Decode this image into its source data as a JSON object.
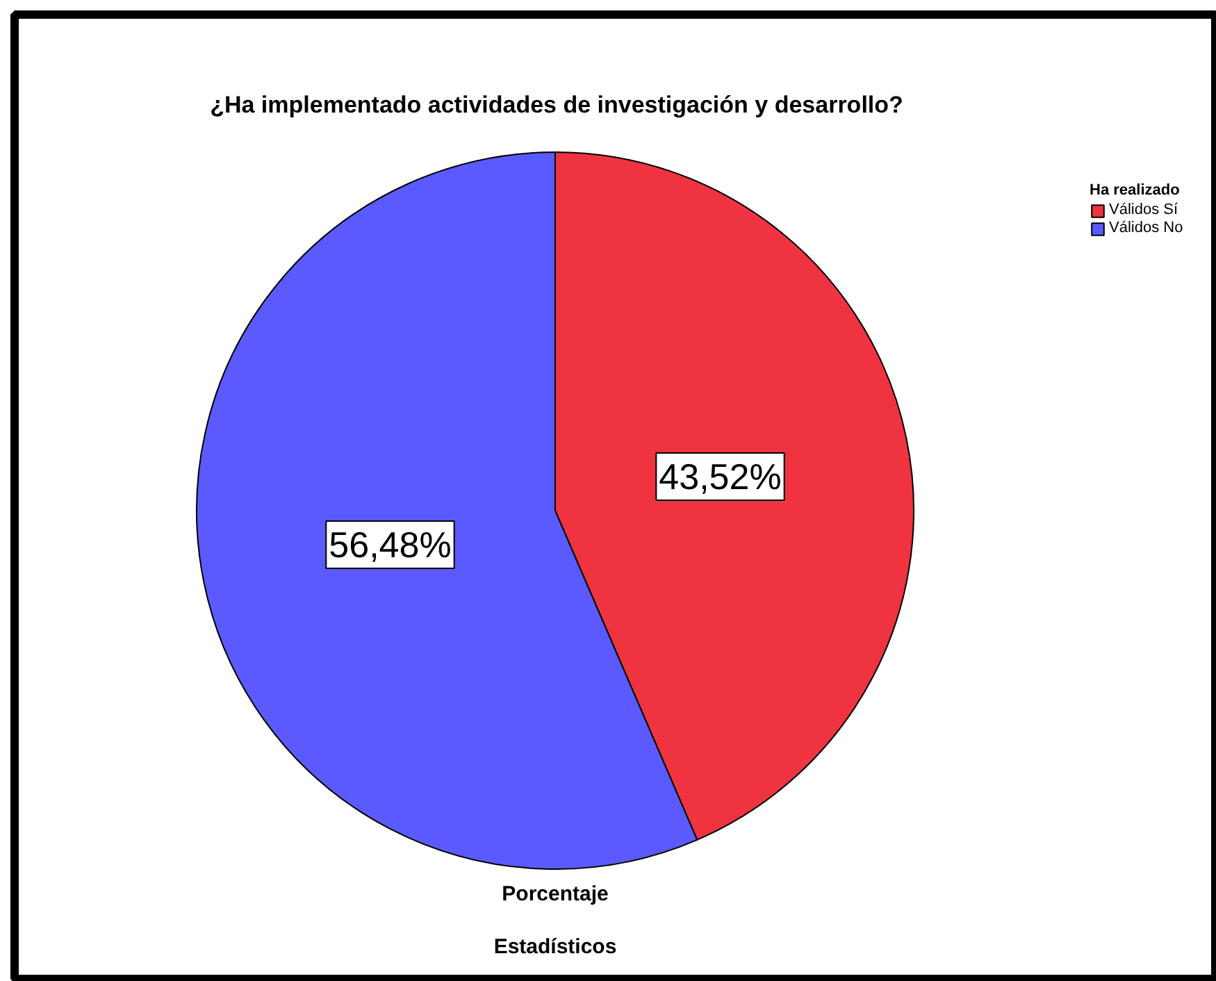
{
  "chart_data": {
    "type": "pie",
    "title": "¿Ha implementado actividades de investigación y desarrollo?",
    "xlabel": "Porcentaje",
    "legend_title": "Ha realizado",
    "categories": [
      "Válidos Sí",
      "Válidos No"
    ],
    "values": [
      43.52,
      56.48
    ],
    "colors": [
      "#ef3340",
      "#5a5aff"
    ],
    "value_labels": [
      "43,52%",
      "56,48%"
    ],
    "legend": "top right",
    "annotations": [
      "Estadísticos"
    ]
  }
}
